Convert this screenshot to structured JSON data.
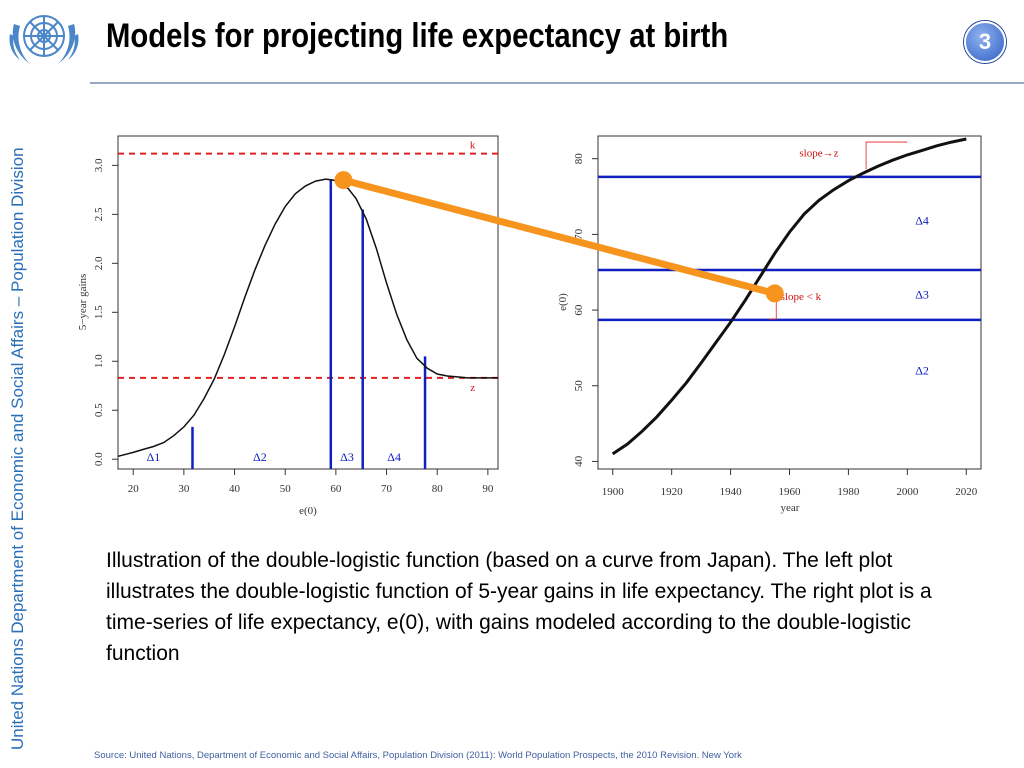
{
  "slide": {
    "title": "Models for projecting life expectancy at birth",
    "number": "3",
    "side_label": "United Nations Department of Economic and Social Affairs – Population Division",
    "caption": "Illustration of the double-logistic function (based on a curve from Japan). The left plot illustrates the double-logistic function of 5-year gains in life expectancy. The right plot is a time-series of life expectancy, e(0), with gains modeled according to the double-logistic function",
    "source": "Source: United Nations, Department of Economic and Social Affairs, Population Division (2011): World Population Prospects, the 2010 Revision. New York"
  },
  "colors": {
    "curve": "#000000",
    "threshold_lines": "#e02020",
    "delta_lines": "#1020c0",
    "connector": "#f7941d",
    "side_text": "#2a6fb8"
  },
  "icons": {
    "logo": "un-emblem-icon"
  },
  "chart_data": [
    {
      "type": "line",
      "name_id": "left-gains-plot",
      "xlabel": "e(0)",
      "ylabel": "5−year gains",
      "xlim": [
        17,
        92
      ],
      "ylim": [
        -0.1,
        3.3
      ],
      "xticks": [
        20,
        30,
        40,
        50,
        60,
        70,
        80,
        90
      ],
      "yticks": [
        0.0,
        0.5,
        1.0,
        1.5,
        2.0,
        2.5,
        3.0
      ],
      "ytick_labels": [
        "0.0",
        "0.5",
        "1.0",
        "1.5",
        "2.0",
        "2.5",
        "3.0"
      ],
      "curve": {
        "x": [
          17,
          20,
          22,
          24,
          26,
          28,
          30,
          32,
          34,
          36,
          38,
          40,
          42,
          44,
          46,
          48,
          50,
          52,
          54,
          56,
          58,
          59.5,
          61,
          62.5,
          64,
          66,
          68,
          70,
          72,
          74,
          76,
          78,
          80,
          82,
          84,
          86,
          88,
          90,
          92
        ],
        "y": [
          0.03,
          0.07,
          0.1,
          0.13,
          0.17,
          0.24,
          0.33,
          0.45,
          0.62,
          0.82,
          1.07,
          1.35,
          1.65,
          1.93,
          2.18,
          2.4,
          2.58,
          2.71,
          2.79,
          2.84,
          2.86,
          2.85,
          2.82,
          2.76,
          2.66,
          2.45,
          2.15,
          1.8,
          1.48,
          1.22,
          1.03,
          0.93,
          0.87,
          0.85,
          0.84,
          0.83,
          0.83,
          0.83,
          0.83
        ]
      },
      "k_line": {
        "label": "k",
        "y": 3.12
      },
      "z_line": {
        "label": "z",
        "y": 0.83
      },
      "delta_boundaries": [
        {
          "x": 31.7,
          "y": 0.33
        },
        {
          "x": 59.0,
          "y": 2.86
        },
        {
          "x": 65.3,
          "y": 2.55
        },
        {
          "x": 77.6,
          "y": 1.05
        }
      ],
      "delta_labels": [
        {
          "label": "Δ1",
          "x": 24
        },
        {
          "label": "Δ2",
          "x": 45
        },
        {
          "label": "Δ3",
          "x": 62.2
        },
        {
          "label": "Δ4",
          "x": 71.5
        }
      ],
      "highlight_point": {
        "x": 61.5,
        "y": 2.85
      }
    },
    {
      "type": "line",
      "name_id": "right-timeseries-plot",
      "xlabel": "year",
      "ylabel": "e(0)",
      "xlim": [
        1895,
        2025
      ],
      "ylim": [
        39,
        83
      ],
      "xticks": [
        1900,
        1920,
        1940,
        1960,
        1980,
        2000,
        2020
      ],
      "yticks": [
        40,
        50,
        60,
        70,
        80
      ],
      "curve": {
        "x": [
          1900,
          1905,
          1910,
          1915,
          1920,
          1925,
          1930,
          1935,
          1940,
          1945,
          1950,
          1955,
          1960,
          1965,
          1970,
          1975,
          1980,
          1985,
          1990,
          1995,
          2000,
          2005,
          2010,
          2015,
          2020
        ],
        "y": [
          41.0,
          42.3,
          44.0,
          45.9,
          48.1,
          50.4,
          53.0,
          55.7,
          58.4,
          61.3,
          64.4,
          67.5,
          70.3,
          72.7,
          74.5,
          75.9,
          77.1,
          78.1,
          79.0,
          79.8,
          80.5,
          81.1,
          81.7,
          82.2,
          82.6
        ]
      },
      "delta_lines_y": [
        58.7,
        65.3,
        77.6
      ],
      "delta_labels": [
        {
          "label": "Δ4",
          "x": 2005,
          "y": 71.3
        },
        {
          "label": "Δ3",
          "x": 2005,
          "y": 61.5
        },
        {
          "label": "Δ2",
          "x": 2005,
          "y": 51.5
        }
      ],
      "annotations": [
        {
          "text": "slope→z",
          "x": 1970,
          "y": 80.3
        },
        {
          "text": "slope < k",
          "x": 1957,
          "y": 61.3
        }
      ],
      "highlight_point": {
        "x": 1955,
        "y": 62.2
      }
    }
  ]
}
